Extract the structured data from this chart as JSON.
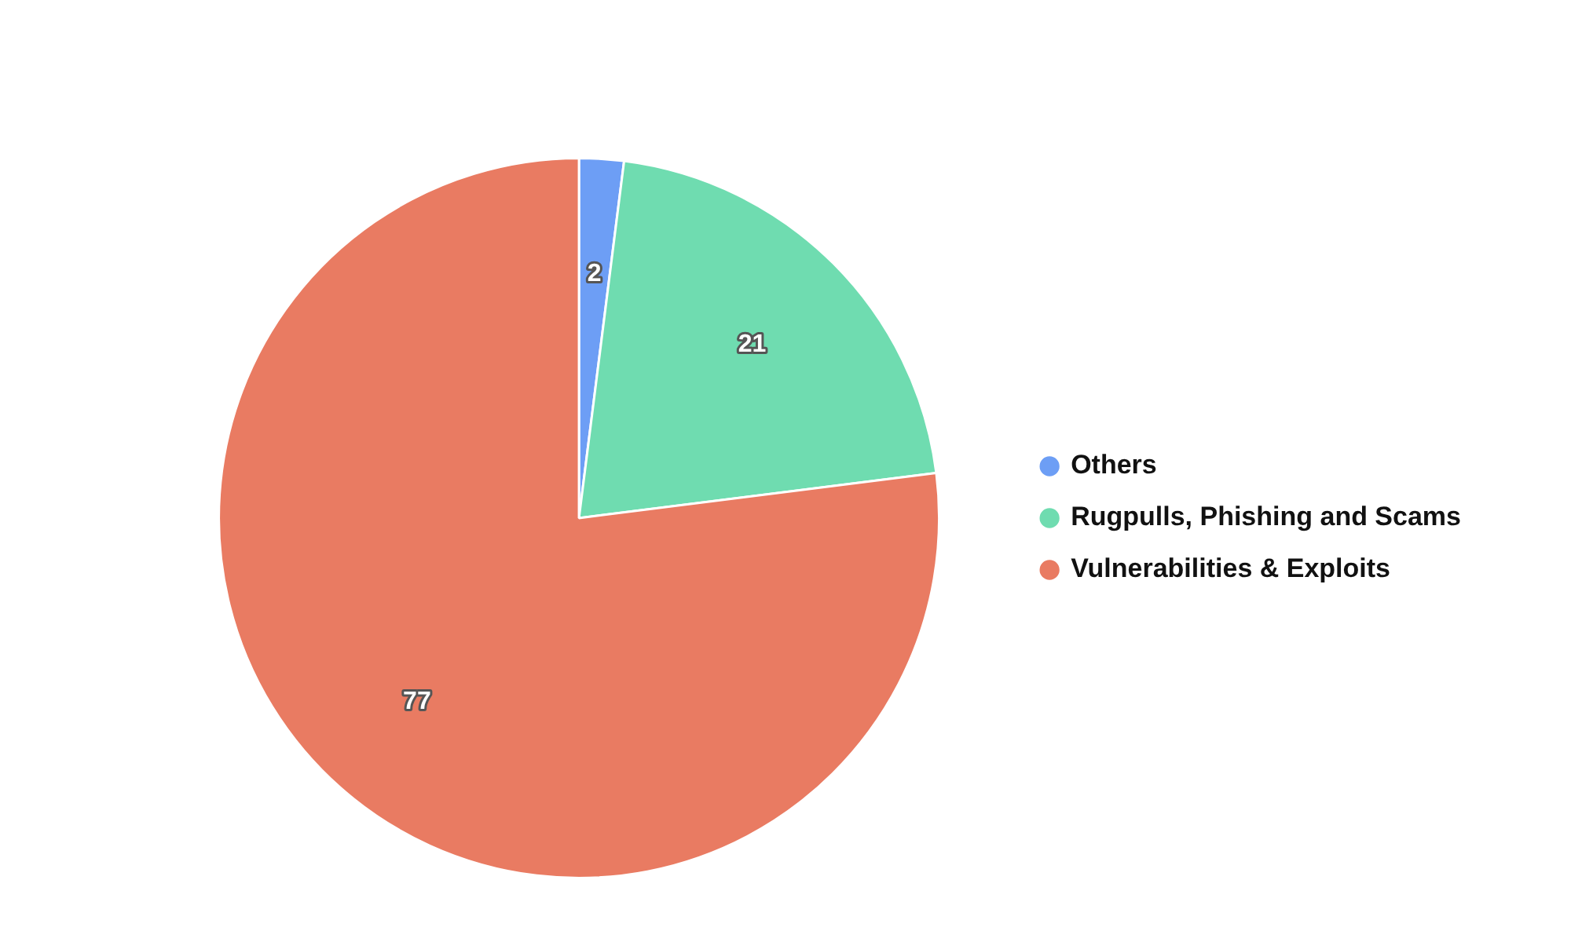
{
  "chart_data": {
    "type": "pie",
    "categories": [
      "Others",
      "Rugpulls, Phishing and Scams",
      "Vulnerabilities & Exploits"
    ],
    "values": [
      2,
      21,
      77
    ],
    "colors": [
      "#6d9ef5",
      "#6fdcb0",
      "#e97b62"
    ],
    "data_labels": true,
    "legend": "right"
  }
}
